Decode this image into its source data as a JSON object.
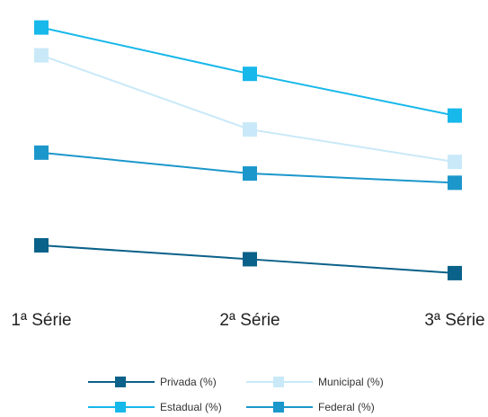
{
  "chart_data": {
    "type": "line",
    "categories": [
      "1ª Série",
      "2ª Série",
      "3ª Série"
    ],
    "series": [
      {
        "name": "Privada (%)",
        "color": "#0a6189",
        "values": [
          13,
          10,
          7
        ]
      },
      {
        "name": "Municipal (%)",
        "color": "#c9e9f8",
        "values": [
          54,
          38,
          31
        ]
      },
      {
        "name": "Estadual (%)",
        "color": "#17b8ea",
        "values": [
          60,
          50,
          41
        ]
      },
      {
        "name": "Federal (%)",
        "color": "#1c97cb",
        "values": [
          33,
          28.5,
          26.5
        ]
      }
    ],
    "ylim": [
      0,
      64
    ],
    "grid": false,
    "legend_position": "bottom",
    "legend_order": [
      "Privada (%)",
      "Municipal (%)",
      "Estadual (%)",
      "Federal (%)"
    ],
    "title": "",
    "xlabel": "",
    "ylabel": ""
  }
}
